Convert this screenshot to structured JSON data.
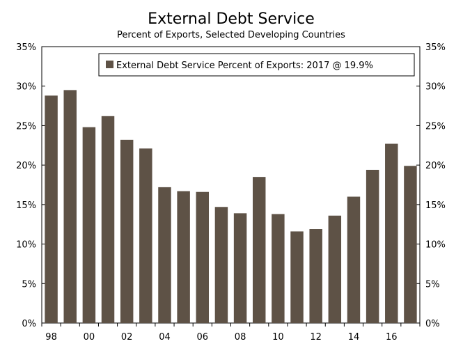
{
  "chart_data": {
    "type": "bar",
    "title": "External Debt Service",
    "subtitle": "Percent of Exports, Selected Developing Countries",
    "years": [
      1998,
      1999,
      2000,
      2001,
      2002,
      2003,
      2004,
      2005,
      2006,
      2007,
      2008,
      2009,
      2010,
      2011,
      2012,
      2013,
      2014,
      2015,
      2016,
      2017
    ],
    "x_tick_labels": [
      "98",
      "00",
      "02",
      "04",
      "06",
      "08",
      "10",
      "12",
      "14",
      "16"
    ],
    "series": [
      {
        "name": "External Debt Service Percent of Exports: 2017 @ 19.9%",
        "values": [
          28.8,
          29.5,
          24.8,
          26.2,
          23.2,
          22.1,
          17.2,
          16.7,
          16.6,
          14.7,
          13.9,
          18.5,
          13.8,
          11.6,
          11.9,
          13.6,
          16.0,
          19.4,
          22.7,
          19.9
        ]
      }
    ],
    "ylim": [
      0,
      35
    ],
    "y_tick_labels": [
      "0%",
      "5%",
      "10%",
      "15%",
      "20%",
      "25%",
      "30%",
      "35%"
    ],
    "legend_position": "top-right",
    "grid": false,
    "bar_color": "#5e5246"
  }
}
